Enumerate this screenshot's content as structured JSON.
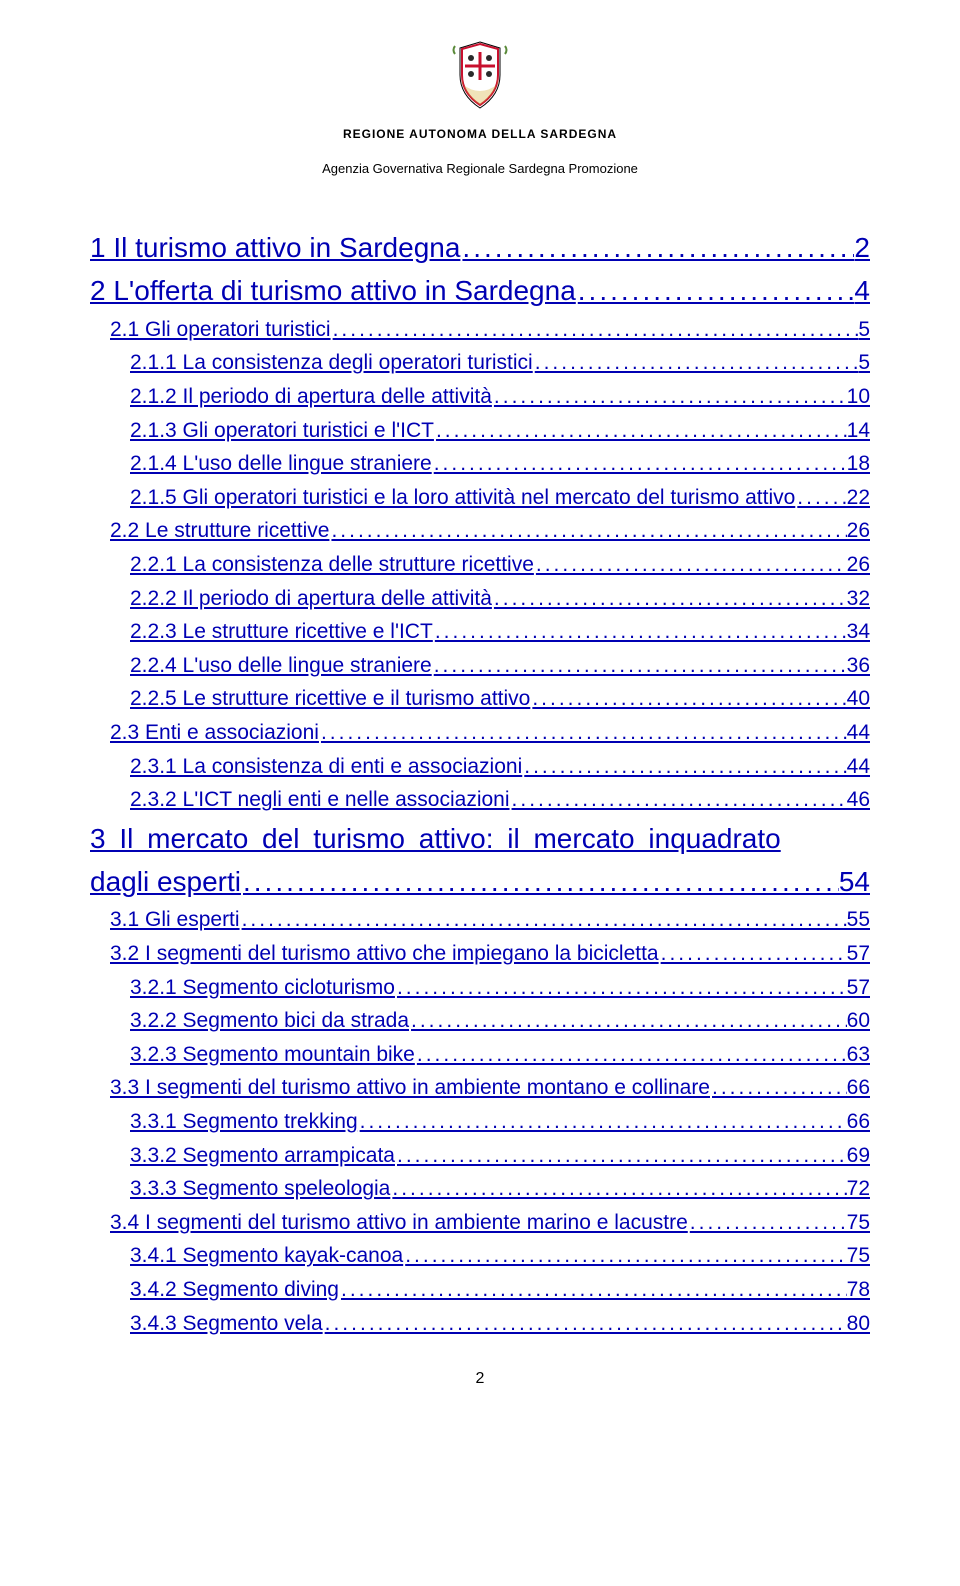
{
  "header": {
    "region_title": "REGIONE AUTONOMA DELLA SARDEGNA",
    "agency": "Agenzia Governativa Regionale Sardegna Promozione"
  },
  "toc": [
    {
      "level": 1,
      "label": "1 Il turismo attivo in Sardegna",
      "page": "2"
    },
    {
      "level": 1,
      "label": "2 L'offerta di turismo attivo in Sardegna",
      "page": "4"
    },
    {
      "level": 2,
      "label": "2.1 Gli operatori turistici",
      "page": "5"
    },
    {
      "level": 3,
      "label": "2.1.1 La consistenza degli operatori turistici",
      "page": "5"
    },
    {
      "level": 3,
      "label": "2.1.2 Il periodo di apertura delle attività",
      "page": "10"
    },
    {
      "level": 3,
      "label": "2.1.3 Gli operatori turistici e l'ICT",
      "page": "14"
    },
    {
      "level": 3,
      "label": "2.1.4 L'uso delle lingue straniere",
      "page": "18"
    },
    {
      "level": 3,
      "label": "2.1.5 Gli operatori turistici e la loro attività nel mercato del turismo attivo",
      "page": "22"
    },
    {
      "level": 2,
      "label": "2.2 Le strutture ricettive",
      "page": "26"
    },
    {
      "level": 3,
      "label": "2.2.1 La consistenza delle strutture ricettive",
      "page": "26"
    },
    {
      "level": 3,
      "label": "2.2.2 Il periodo di apertura delle attività",
      "page": "32"
    },
    {
      "level": 3,
      "label": "2.2.3 Le strutture ricettive e l'ICT",
      "page": "34"
    },
    {
      "level": 3,
      "label": "2.2.4 L'uso delle lingue straniere",
      "page": "36"
    },
    {
      "level": 3,
      "label": "2.2.5 Le strutture ricettive e il turismo attivo",
      "page": "40"
    },
    {
      "level": 2,
      "label": "2.3 Enti e associazioni",
      "page": "44"
    },
    {
      "level": 3,
      "label": "2.3.1 La consistenza di enti e associazioni",
      "page": "44"
    },
    {
      "level": 3,
      "label": "2.3.2 L'ICT negli enti e nelle associazioni",
      "page": "46"
    },
    {
      "level": 1,
      "label": "3 Il mercato del turismo attivo: il mercato inquadrato dagli esperti",
      "page": "54",
      "multiline": true
    },
    {
      "level": 2,
      "label": "3.1 Gli esperti",
      "page": "55"
    },
    {
      "level": 2,
      "label": "3.2 I segmenti del turismo attivo che impiegano la bicicletta",
      "page": "57"
    },
    {
      "level": 3,
      "label": "3.2.1 Segmento cicloturismo",
      "page": "57"
    },
    {
      "level": 3,
      "label": "3.2.2 Segmento bici da strada",
      "page": "60"
    },
    {
      "level": 3,
      "label": "3.2.3 Segmento mountain bike ",
      "page": "63"
    },
    {
      "level": 2,
      "label": "3.3 I segmenti del turismo attivo in ambiente montano e collinare",
      "page": "66"
    },
    {
      "level": 3,
      "label": "3.3.1 Segmento trekking ",
      "page": "66"
    },
    {
      "level": 3,
      "label": "3.3.2 Segmento arrampicata",
      "page": "69"
    },
    {
      "level": 3,
      "label": "3.3.3 Segmento speleologia",
      "page": "72"
    },
    {
      "level": 2,
      "label": "3.4 I segmenti del turismo attivo in ambiente marino e lacustre",
      "page": "75"
    },
    {
      "level": 3,
      "label": "3.4.1 Segmento kayak-canoa",
      "page": "75"
    },
    {
      "level": 3,
      "label": "3.4.2 Segmento diving",
      "page": "78"
    },
    {
      "level": 3,
      "label": "3.4.3 Segmento vela",
      "page": "80"
    }
  ],
  "footer": {
    "page_number": "2"
  },
  "colors": {
    "link": "#0000b3",
    "text": "#000000",
    "background": "#ffffff",
    "crest_red": "#c8102e",
    "crest_gold": "#d4af37"
  }
}
